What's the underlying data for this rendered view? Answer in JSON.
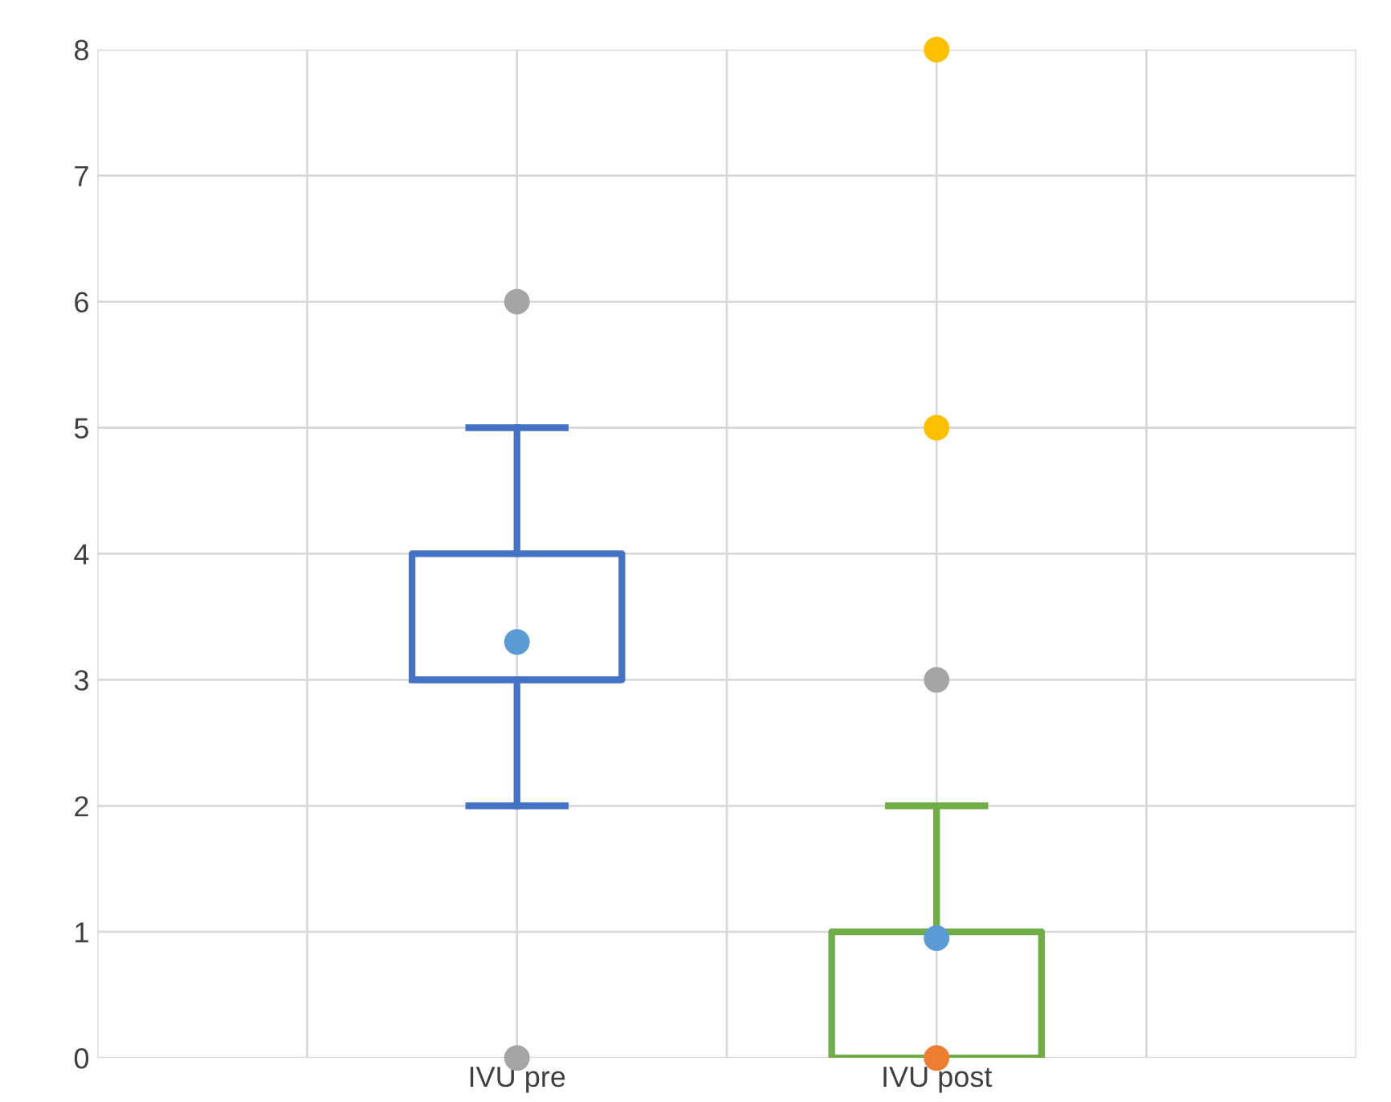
{
  "chart_data": {
    "type": "box",
    "categories": [
      "IVU pre",
      "IVU post"
    ],
    "colors": [
      "#4472c4",
      "#70ad47"
    ],
    "boxes": [
      {
        "low": 2,
        "q1": 3,
        "median": 3,
        "q3": 4,
        "high": 5
      },
      {
        "low": 0,
        "q1": 0,
        "median": 0,
        "q3": 1,
        "high": 2
      }
    ],
    "series": [
      {
        "type": "scatter",
        "color": "#5b9bd5",
        "x": [
          "IVU pre",
          "IVU post"
        ],
        "values": [
          3.3,
          0.95
        ]
      },
      {
        "type": "scatter",
        "color": "#a5a5a5",
        "x": [
          "IVU pre",
          "IVU pre",
          "IVU post"
        ],
        "values": [
          6,
          0,
          3
        ]
      },
      {
        "type": "scatter",
        "color": "#ffc000",
        "x": [
          "IVU post",
          "IVU post"
        ],
        "values": [
          8,
          5
        ]
      },
      {
        "type": "scatter",
        "color": "#ed7d31",
        "x": [
          "IVU post"
        ],
        "values": [
          0
        ]
      }
    ],
    "ylim": [
      0,
      8
    ],
    "yticks": [
      0,
      1,
      2,
      3,
      4,
      5,
      6,
      7,
      8
    ],
    "grid": true,
    "marker": "circle"
  }
}
